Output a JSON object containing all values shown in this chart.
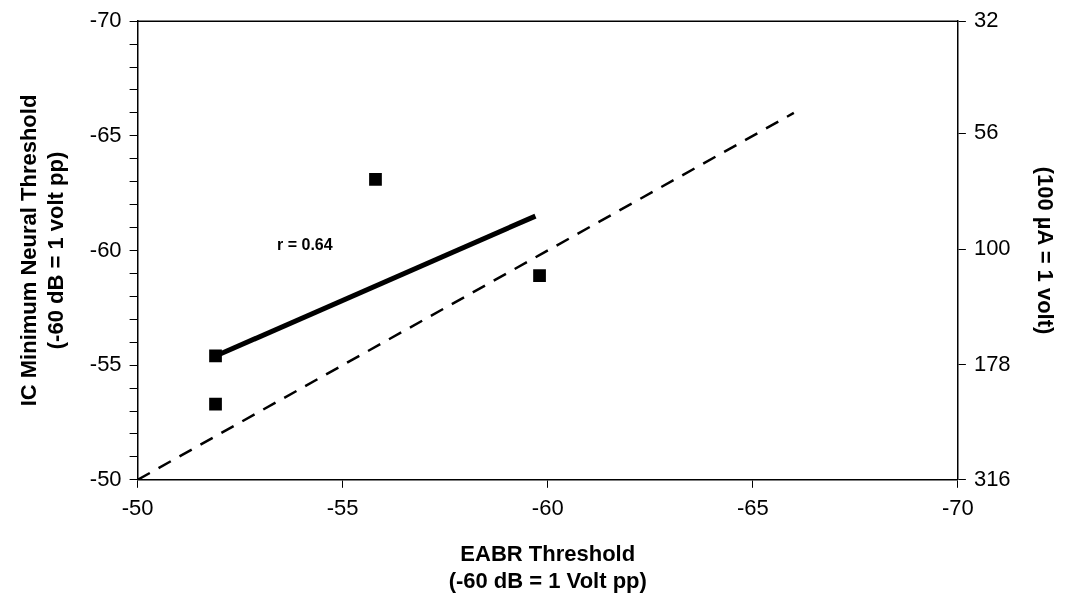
{
  "chart_data": {
    "type": "scatter",
    "xlabel": "EABR Threshold\n(-60 dB = 1 Volt pp)",
    "ylabel": "IC Minimum Neural Threshold\n(-60 dB = 1 volt pp)",
    "y2label": "(100 µA = 1 volt)",
    "xlim": [
      -50,
      -70
    ],
    "ylim": [
      -50,
      -70
    ],
    "xticks": [
      -50,
      -55,
      -60,
      -65,
      -70
    ],
    "yticks": [
      -50,
      {
        "value": -51,
        "label": null
      },
      {
        "value": -52,
        "label": null
      },
      {
        "value": -53,
        "label": null
      },
      {
        "value": -54,
        "label": null
      },
      -55,
      {
        "value": -56,
        "label": null
      },
      {
        "value": -57,
        "label": null
      },
      {
        "value": -58,
        "label": null
      },
      {
        "value": -59,
        "label": null
      },
      -60,
      {
        "value": -61,
        "label": null
      },
      {
        "value": -62,
        "label": null
      },
      {
        "value": -63,
        "label": null
      },
      {
        "value": -64,
        "label": null
      },
      -65,
      {
        "value": -66,
        "label": null
      },
      {
        "value": -67,
        "label": null
      },
      {
        "value": -68,
        "label": null
      },
      {
        "value": -69,
        "label": null
      },
      -70
    ],
    "y2lim": [
      316,
      32
    ],
    "y2ticks": [
      316,
      178,
      100,
      56,
      32
    ],
    "log": "y2",
    "grid": false,
    "legend": false,
    "marker": "square",
    "series": [
      {
        "color": "#000000",
        "x": [
          -51.9,
          -51.9,
          -55.8,
          -59.8
        ],
        "values": [
          -55.4,
          -53.3,
          -63.1,
          -58.9
        ]
      },
      {
        "type": "line",
        "color": "#000000",
        "marker": "none",
        "line_style": "solid",
        "x": [
          -51.9,
          -59.7
        ],
        "values": [
          -55.4,
          -61.5
        ]
      },
      {
        "type": "line",
        "color": "#000000",
        "marker": "none",
        "line_style": "dashed",
        "x": [
          -50,
          -66
        ],
        "values": [
          -50,
          -66
        ]
      }
    ],
    "annotations": [
      "r = 0.64"
    ]
  }
}
